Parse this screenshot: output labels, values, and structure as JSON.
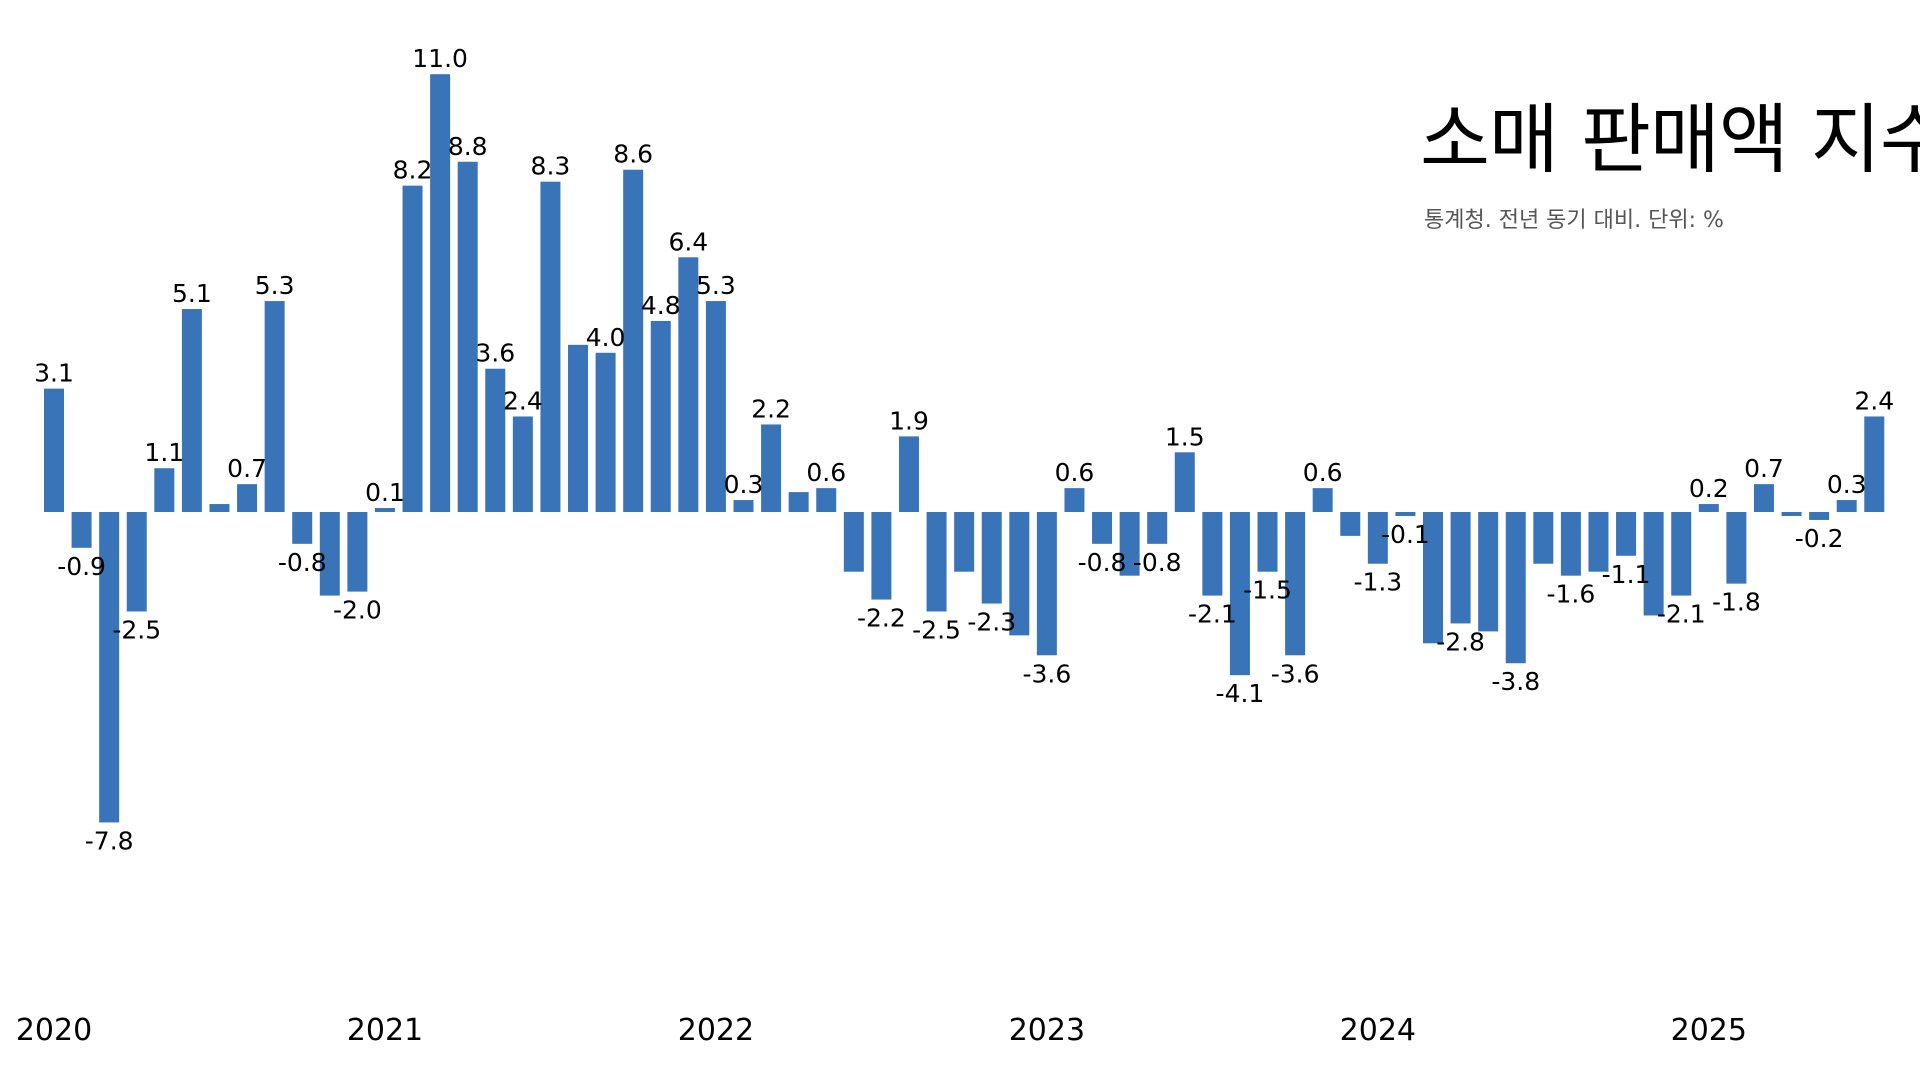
{
  "title": "소매 판매액 지수.",
  "subtitle": "통계청. 전년 동기 대비. 단위: %",
  "colors": {
    "bar": "#3a74b8"
  },
  "chart_data": {
    "type": "bar",
    "title": "소매 판매액 지수.",
    "subtitle": "통계청. 전년 동기 대비. 단위: %",
    "x_tick_labels": [
      "2020",
      "2021",
      "2022",
      "2023",
      "2024",
      "2025"
    ],
    "x_tick_index": [
      0,
      12,
      24,
      36,
      48,
      60
    ],
    "values": [
      3.1,
      -0.9,
      -7.8,
      -2.5,
      1.1,
      5.1,
      0.2,
      0.7,
      5.3,
      -0.8,
      -2.1,
      -2.0,
      0.1,
      8.2,
      11.0,
      8.8,
      3.6,
      2.4,
      8.3,
      4.2,
      4.0,
      8.6,
      4.8,
      6.4,
      5.3,
      0.3,
      2.2,
      0.5,
      0.6,
      -1.5,
      -2.2,
      1.9,
      -2.5,
      -1.5,
      -2.3,
      -3.1,
      -3.6,
      0.6,
      -0.8,
      -1.6,
      -0.8,
      1.5,
      -2.1,
      -4.1,
      -1.5,
      -3.6,
      0.6,
      -0.6,
      -1.3,
      -0.1,
      -3.3,
      -2.8,
      -3.0,
      -3.8,
      -1.3,
      -1.6,
      -1.5,
      -1.1,
      -2.6,
      -2.1,
      0.2,
      -1.8,
      0.7,
      -0.1,
      -0.2,
      0.3,
      2.4
    ],
    "labels": [
      "3.1",
      "-0.9",
      "-7.8",
      "-2.5",
      "1.1",
      "5.1",
      "",
      "0.7",
      "5.3",
      "-0.8",
      "",
      "-2.0",
      "0.1",
      "8.2",
      "11.0",
      "8.8",
      "3.6",
      "2.4",
      "8.3",
      "",
      "4.0",
      "8.6",
      "4.8",
      "6.4",
      "5.3",
      "0.3",
      "2.2",
      "",
      "0.6",
      "",
      "-2.2",
      "1.9",
      "-2.5",
      "",
      "-2.3",
      "",
      "-3.6",
      "0.6",
      "-0.8",
      "",
      "-0.8",
      "1.5",
      "-2.1",
      "-4.1",
      "-1.5",
      "-3.6",
      "0.6",
      "",
      "-1.3",
      "-0.1",
      "",
      "-2.8",
      "",
      "-3.8",
      "",
      "-1.6",
      "",
      "-1.1",
      "",
      "-2.1",
      "0.2",
      "-1.8",
      "0.7",
      "",
      "-0.2",
      "0.3",
      "2.4"
    ]
  }
}
